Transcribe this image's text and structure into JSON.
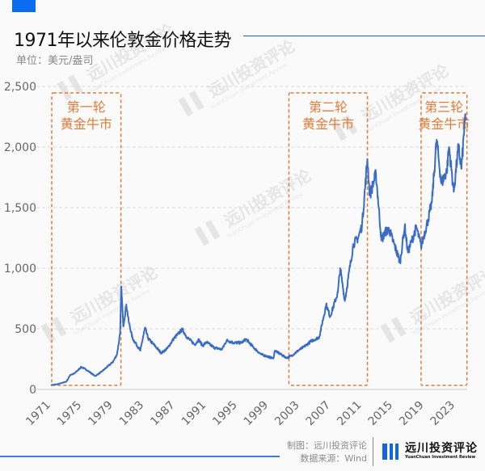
{
  "header": {
    "title": "1971年以来伦敦金价格走势",
    "unit": "单位：美元/盎司",
    "accent_color": "#0a6cf0"
  },
  "footer": {
    "maker": "制图：远川投资评论",
    "source": "数据来源：Wind",
    "logo_name": "远川投资评论",
    "logo_sub": "YuanChuan Investment Review"
  },
  "watermark": {
    "name": "远川投资评论",
    "sub": "YuanChuan Investment Review"
  },
  "chart_data": {
    "type": "line",
    "title": "1971年以来伦敦金价格走势",
    "ylabel": "单位：美元/盎司",
    "xlim": [
      1971,
      2024.5
    ],
    "ylim": [
      0,
      2500
    ],
    "yticks": [
      0,
      500,
      1000,
      1500,
      2000,
      2500
    ],
    "ytick_labels": [
      "0",
      "500",
      "1,000",
      "1,500",
      "2,000",
      "2,500"
    ],
    "xticks": [
      "1971",
      "1975",
      "1979",
      "1983",
      "1987",
      "1991",
      "1995",
      "1999",
      "2003",
      "2007",
      "2011",
      "2015",
      "2019",
      "2023"
    ],
    "grid": "horizontal dashed",
    "line_color": "#3a6cc4",
    "annotation_color": "#e07b39",
    "series": [
      {
        "x": [
          1971.0,
          1972.0,
          1973.0,
          1973.5,
          1974.0,
          1974.9,
          1975.5,
          1976.7,
          1977.5,
          1978.5,
          1979.0,
          1979.5,
          1979.9,
          1980.05,
          1980.3,
          1980.7,
          1981.0,
          1981.5,
          1982.5,
          1983.1,
          1983.5,
          1984.5,
          1985.2,
          1986.0,
          1986.8,
          1987.9,
          1988.5,
          1989.5,
          1990.0,
          1990.5,
          1991.0,
          1992.0,
          1993.0,
          1993.6,
          1994.5,
          1995.5,
          1996.1,
          1997.0,
          1998.0,
          1999.6,
          1999.8,
          2001.3,
          2002.0,
          2002.8,
          2003.5,
          2004.5,
          2005.5,
          2006.4,
          2006.9,
          2007.9,
          2008.2,
          2008.8,
          2009.9,
          2010.5,
          2011.0,
          2011.7,
          2012.0,
          2012.8,
          2013.5,
          2014.0,
          2014.5,
          2015.9,
          2016.5,
          2016.9,
          2018.0,
          2018.6,
          2019.5,
          2020.0,
          2020.6,
          2021.2,
          2021.9,
          2022.2,
          2022.8,
          2023.4,
          2023.8,
          2024.2,
          2024.4
        ],
        "y": [
          35,
          45,
          65,
          120,
          130,
          185,
          165,
          110,
          145,
          200,
          230,
          290,
          460,
          850,
          520,
          700,
          560,
          420,
          320,
          510,
          420,
          350,
          300,
          340,
          420,
          495,
          430,
          370,
          410,
          360,
          390,
          345,
          330,
          405,
          385,
          385,
          415,
          350,
          290,
          255,
          320,
          260,
          280,
          320,
          350,
          400,
          430,
          700,
          600,
          800,
          1000,
          730,
          1200,
          1250,
          1350,
          1900,
          1600,
          1780,
          1230,
          1300,
          1320,
          1050,
          1350,
          1130,
          1340,
          1180,
          1400,
          1550,
          2060,
          1700,
          1800,
          2000,
          1630,
          2000,
          1820,
          2200,
          2220
        ]
      }
    ],
    "annotations": [
      {
        "label_line1": "第一轮",
        "label_line2": "黄金牛市",
        "from": 1971,
        "to": 1980
      },
      {
        "label_line1": "第二轮",
        "label_line2": "黄金牛市",
        "from": 2001.5,
        "to": 2011.7
      },
      {
        "label_line1": "第三轮",
        "label_line2": "黄金牛市",
        "from": 2018.5,
        "to": 2024.5
      }
    ]
  }
}
